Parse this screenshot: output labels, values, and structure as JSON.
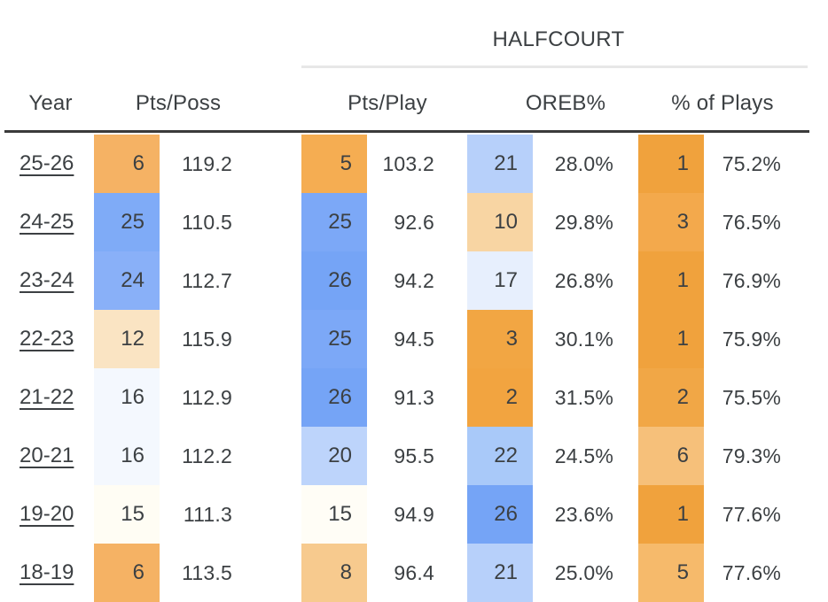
{
  "table": {
    "group_title": "HALFCOURT",
    "columns": [
      "Year",
      "Pts/Poss",
      "Pts/Play",
      "OREB%",
      "% of Plays"
    ],
    "text_color": "#3c4043",
    "header_rule_color": "#3a3a3a",
    "group_underline_color": "#e7e7e7",
    "rows": [
      {
        "year": "25-26",
        "pts_poss": {
          "rank": "6",
          "value": "119.2",
          "color": "#f5b264"
        },
        "pts_play": {
          "rank": "5",
          "value": "103.2",
          "color": "#f5ad52"
        },
        "oreb": {
          "rank": "21",
          "value": "28.0%",
          "color": "#b7d0fa"
        },
        "pct_plays": {
          "rank": "1",
          "value": "75.2%",
          "color": "#f0a23d"
        }
      },
      {
        "year": "24-25",
        "pts_poss": {
          "rank": "25",
          "value": "110.5",
          "color": "#7fabf7"
        },
        "pts_play": {
          "rank": "25",
          "value": "92.6",
          "color": "#7ca8f7"
        },
        "oreb": {
          "rank": "10",
          "value": "29.8%",
          "color": "#f8d5a3"
        },
        "pct_plays": {
          "rank": "3",
          "value": "76.5%",
          "color": "#f3a94c"
        }
      },
      {
        "year": "23-24",
        "pts_poss": {
          "rank": "24",
          "value": "112.7",
          "color": "#89b0f8"
        },
        "pts_play": {
          "rank": "26",
          "value": "94.2",
          "color": "#75a4f6"
        },
        "oreb": {
          "rank": "17",
          "value": "26.8%",
          "color": "#e7effd"
        },
        "pct_plays": {
          "rank": "1",
          "value": "76.9%",
          "color": "#f0a23d"
        }
      },
      {
        "year": "22-23",
        "pts_poss": {
          "rank": "12",
          "value": "115.9",
          "color": "#fae4c3"
        },
        "pts_play": {
          "rank": "25",
          "value": "94.5",
          "color": "#7ca8f7"
        },
        "oreb": {
          "rank": "3",
          "value": "30.1%",
          "color": "#f2a643"
        },
        "pct_plays": {
          "rank": "1",
          "value": "75.9%",
          "color": "#f0a23d"
        }
      },
      {
        "year": "21-22",
        "pts_poss": {
          "rank": "16",
          "value": "112.9",
          "color": "#f4f8fe"
        },
        "pts_play": {
          "rank": "26",
          "value": "91.3",
          "color": "#75a4f6"
        },
        "oreb": {
          "rank": "2",
          "value": "31.5%",
          "color": "#f2a440"
        },
        "pct_plays": {
          "rank": "2",
          "value": "75.5%",
          "color": "#f1a746"
        }
      },
      {
        "year": "20-21",
        "pts_poss": {
          "rank": "16",
          "value": "112.2",
          "color": "#f4f8fe"
        },
        "pts_play": {
          "rank": "20",
          "value": "95.5",
          "color": "#bdd4fb"
        },
        "oreb": {
          "rank": "22",
          "value": "24.5%",
          "color": "#a9c9f9"
        },
        "pct_plays": {
          "rank": "6",
          "value": "79.3%",
          "color": "#f6c07a"
        }
      },
      {
        "year": "19-20",
        "pts_poss": {
          "rank": "15",
          "value": "111.3",
          "color": "#fffdf4"
        },
        "pts_play": {
          "rank": "15",
          "value": "94.9",
          "color": "#fffdf6"
        },
        "oreb": {
          "rank": "26",
          "value": "23.6%",
          "color": "#75a4f6"
        },
        "pct_plays": {
          "rank": "1",
          "value": "77.6%",
          "color": "#f0a23d"
        }
      },
      {
        "year": "18-19",
        "pts_poss": {
          "rank": "6",
          "value": "113.5",
          "color": "#f5b264"
        },
        "pts_play": {
          "rank": "8",
          "value": "96.4",
          "color": "#f7ca8e"
        },
        "oreb": {
          "rank": "21",
          "value": "25.0%",
          "color": "#b7d0fa"
        },
        "pct_plays": {
          "rank": "5",
          "value": "77.6%",
          "color": "#f6ba6b"
        }
      }
    ]
  },
  "chart_data": {
    "type": "table",
    "title": "HALFCOURT",
    "columns": [
      "Year",
      "Pts/Poss Rank",
      "Pts/Poss",
      "Pts/Play Rank",
      "Pts/Play",
      "OREB% Rank",
      "OREB%",
      "% of Plays Rank",
      "% of Plays"
    ],
    "rows": [
      [
        "25-26",
        6,
        119.2,
        5,
        103.2,
        21,
        "28.0%",
        1,
        "75.2%"
      ],
      [
        "24-25",
        25,
        110.5,
        25,
        92.6,
        10,
        "29.8%",
        3,
        "76.5%"
      ],
      [
        "23-24",
        24,
        112.7,
        26,
        94.2,
        17,
        "26.8%",
        1,
        "76.9%"
      ],
      [
        "22-23",
        12,
        115.9,
        25,
        94.5,
        3,
        "30.1%",
        1,
        "75.9%"
      ],
      [
        "21-22",
        16,
        112.9,
        26,
        91.3,
        2,
        "31.5%",
        2,
        "75.5%"
      ],
      [
        "20-21",
        16,
        112.2,
        20,
        95.5,
        22,
        "24.5%",
        6,
        "79.3%"
      ],
      [
        "19-20",
        15,
        111.3,
        15,
        94.9,
        26,
        "23.6%",
        1,
        "77.6%"
      ],
      [
        "18-19",
        6,
        113.5,
        8,
        96.4,
        21,
        "25.0%",
        5,
        "77.6%"
      ]
    ],
    "layout_hints": {
      "rank_cell_color_scale": "diverging: orange (#f0a23d) for best ranks through near-white to blue (#75a4f6) for worst ranks, normalized per column",
      "section_header_spans": [
        "Pts/Play",
        "OREB%",
        "% of Plays"
      ],
      "grid": "single dark rule under column headers; light rule under section title"
    }
  }
}
